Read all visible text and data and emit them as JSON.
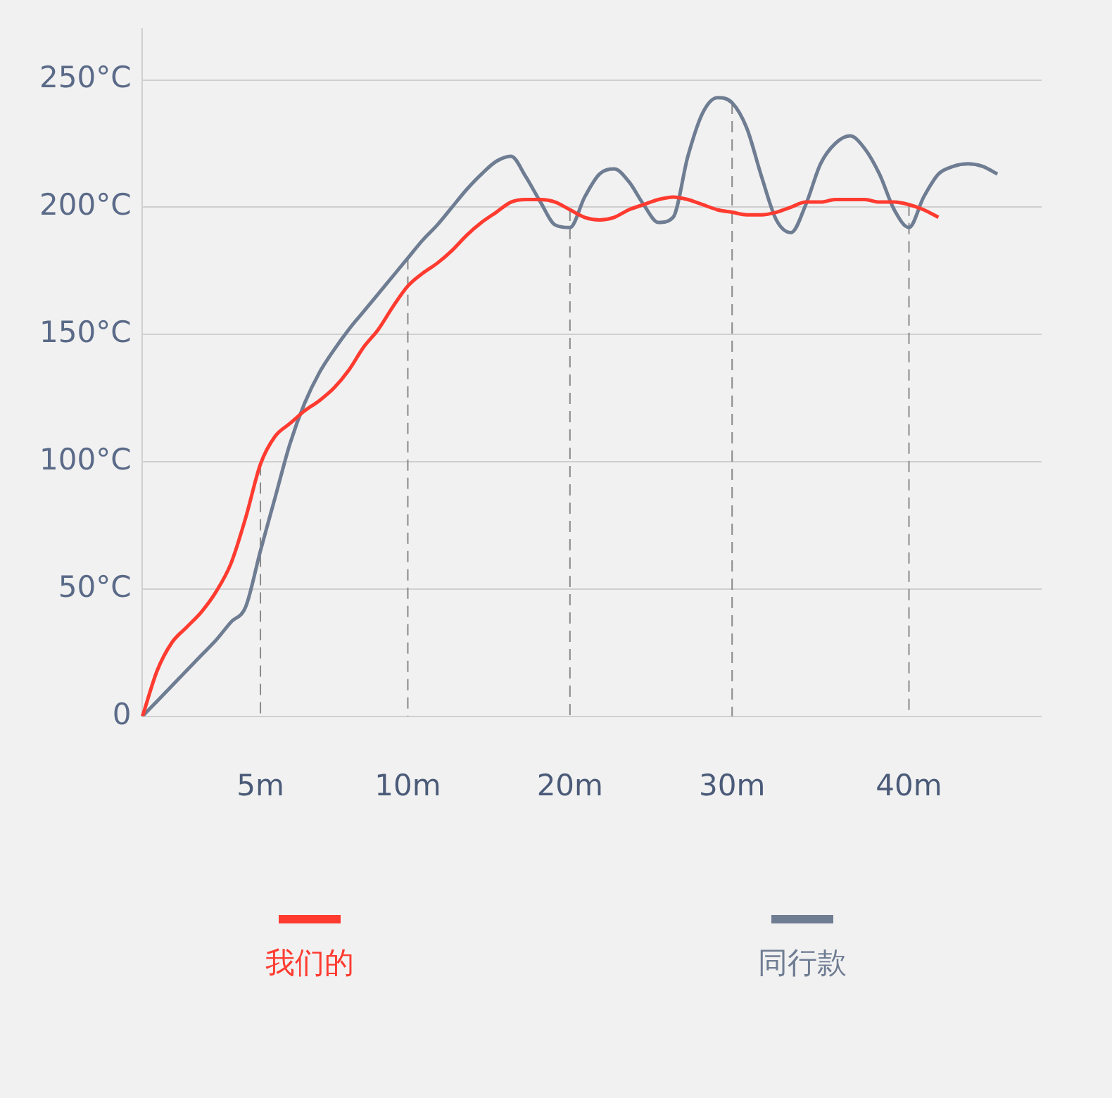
{
  "chart_data": {
    "type": "line",
    "categories": [
      null,
      null,
      null,
      null,
      null,
      null,
      null,
      null,
      "5m",
      null,
      null,
      null,
      null,
      null,
      null,
      null,
      null,
      null,
      "10m",
      null,
      null,
      null,
      null,
      null,
      null,
      null,
      null,
      null,
      null,
      "20m",
      null,
      null,
      null,
      null,
      null,
      null,
      null,
      null,
      null,
      null,
      "30m",
      null,
      null,
      null,
      null,
      null,
      null,
      null,
      null,
      null,
      null,
      null,
      "40m",
      null,
      null,
      null,
      null,
      null,
      null,
      null,
      null,
      null
    ],
    "series": [
      {
        "name": "我们的",
        "color": "#ff3b30",
        "values": [
          0,
          18,
          29,
          35,
          41,
          49,
          60,
          78,
          99,
          110,
          115,
          120,
          124,
          129,
          136,
          145,
          152,
          161,
          169,
          174,
          178,
          183,
          189,
          194,
          198,
          202,
          203,
          203,
          202,
          199,
          196,
          195,
          196,
          199,
          201,
          203,
          204,
          203,
          201,
          199,
          198,
          197,
          197,
          198,
          200,
          202,
          202,
          203,
          203,
          203,
          202,
          202,
          201,
          199,
          196,
          null,
          null,
          null,
          null,
          null,
          null,
          null
        ]
      },
      {
        "name": "同行款",
        "color": "#6f7d93",
        "values": [
          0,
          6,
          12,
          18,
          24,
          30,
          37,
          43,
          65,
          86,
          107,
          123,
          135,
          144,
          152,
          159,
          166,
          173,
          180,
          187,
          193,
          200,
          207,
          213,
          218,
          220,
          212,
          202,
          193,
          192,
          204,
          213,
          215,
          210,
          201,
          194,
          196,
          220,
          237,
          243,
          241,
          231,
          212,
          195,
          190,
          201,
          217,
          225,
          228,
          223,
          213,
          199,
          192,
          204,
          213,
          216,
          217,
          216,
          213,
          null,
          null,
          null
        ]
      }
    ],
    "ylim": [
      0,
      270
    ],
    "yticks": [
      {
        "value": 0,
        "label": "0"
      },
      {
        "value": 50,
        "label": "50°C"
      },
      {
        "value": 100,
        "label": "100°C"
      },
      {
        "value": 150,
        "label": "150°C"
      },
      {
        "value": 200,
        "label": "200°C"
      },
      {
        "value": 250,
        "label": "250°C"
      }
    ],
    "grid": "y",
    "legend": "bottom",
    "marker": "none",
    "line_style": "solid",
    "ref_lines": [
      {
        "axis": "x",
        "value": "5m",
        "line_style": "dashed",
        "color": "#8a8a8a"
      },
      {
        "axis": "x",
        "value": "10m",
        "line_style": "dashed",
        "color": "#8a8a8a"
      },
      {
        "axis": "x",
        "value": "20m",
        "line_style": "dashed",
        "color": "#8a8a8a"
      },
      {
        "axis": "x",
        "value": "30m",
        "line_style": "dashed",
        "color": "#8a8a8a"
      },
      {
        "axis": "x",
        "value": "40m",
        "line_style": "dashed",
        "color": "#8a8a8a"
      }
    ]
  }
}
